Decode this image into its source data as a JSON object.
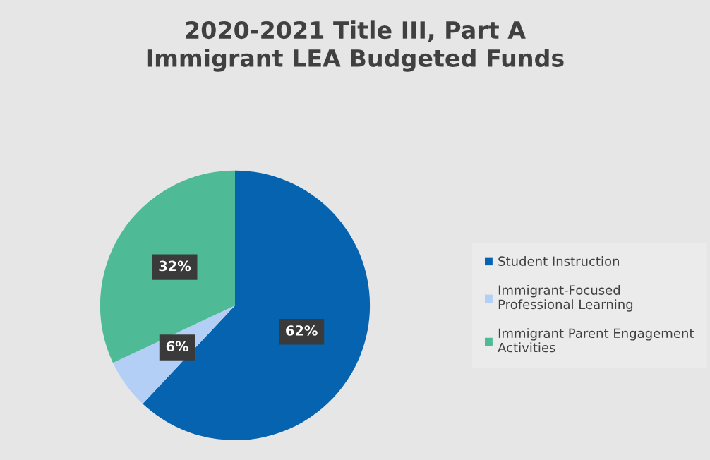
{
  "chart_data": {
    "type": "pie",
    "title": "2020-2021 Title III, Part A Immigrant LEA Budgeted Funds",
    "categories": [
      "Student Instruction",
      "Immigrant-Focused Professional Learning",
      "Immigrant Parent Engagement Activities"
    ],
    "values": [
      62,
      6,
      32
    ],
    "colors": [
      "#0563b0",
      "#b4cff5",
      "#4fba96"
    ],
    "value_labels": [
      "62%",
      "6%",
      "32%"
    ],
    "legend": "right"
  }
}
